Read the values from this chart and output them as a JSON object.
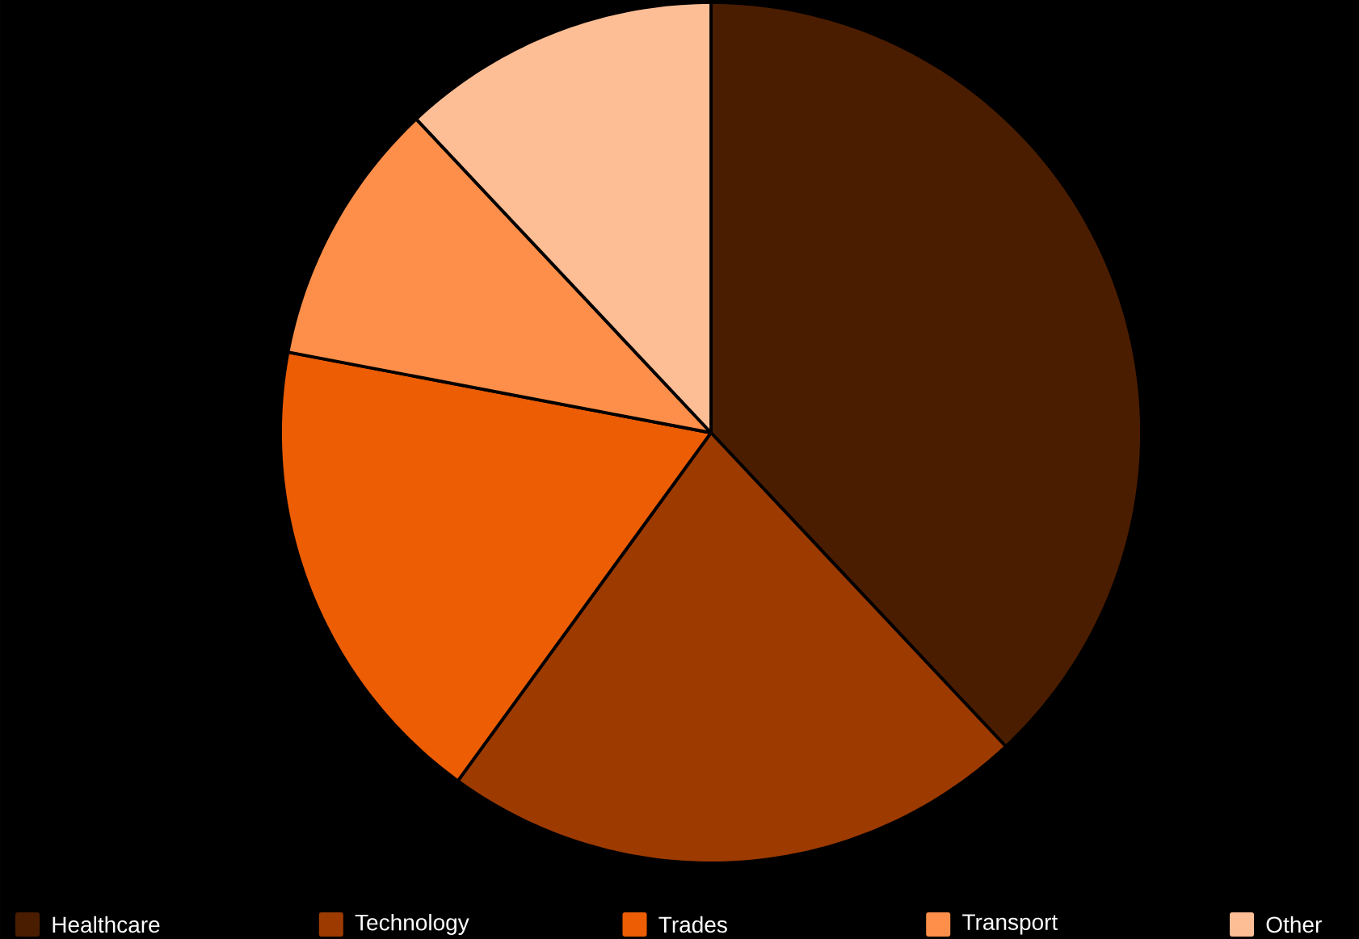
{
  "chart_data": {
    "type": "pie",
    "categories": [
      "Healthcare",
      "Technology",
      "Trades",
      "Transport",
      "Other"
    ],
    "values": [
      38,
      22,
      18,
      10,
      12
    ],
    "colors": [
      "#4b1d00",
      "#9c3a00",
      "#ec5d04",
      "#fd8f4a",
      "#fdbe96"
    ],
    "legend": "bottom"
  }
}
